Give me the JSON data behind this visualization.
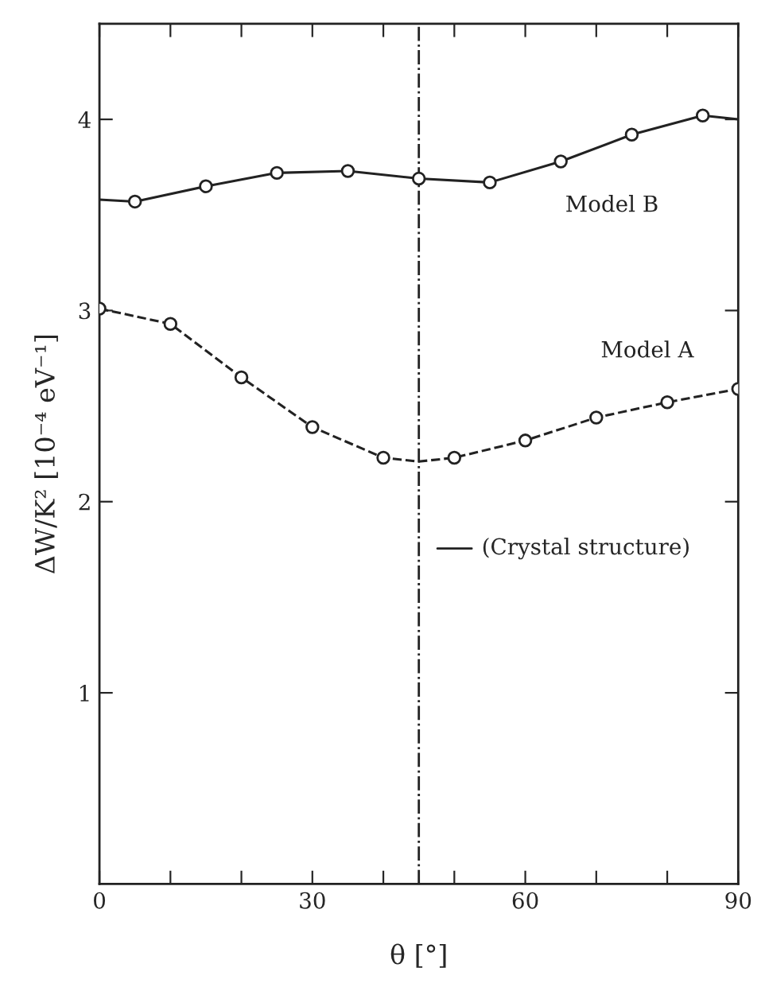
{
  "chart_data": {
    "type": "line",
    "xlabel": "θ [°]",
    "ylabel": "ΔW/K² [10⁻⁴ eV⁻¹]",
    "xlim": [
      0,
      90
    ],
    "ylim": [
      0,
      4.5
    ],
    "xticks": [
      0,
      {
        "value": 10,
        "label": null
      },
      {
        "value": 20,
        "label": null
      },
      30,
      {
        "value": 40,
        "label": null
      },
      {
        "value": 50,
        "label": null
      },
      60,
      {
        "value": 70,
        "label": null
      },
      {
        "value": 80,
        "label": null
      },
      90
    ],
    "yticks": [
      1,
      2,
      3,
      4
    ],
    "grid": false,
    "legend": false,
    "series": [
      {
        "color": "#222222",
        "line_style": "solid",
        "marker": "none",
        "x": [
          0,
          5,
          15,
          25,
          35,
          45,
          55,
          65,
          75,
          85,
          90
        ],
        "values": [
          3.58,
          3.57,
          3.65,
          3.72,
          3.73,
          3.69,
          3.67,
          3.78,
          3.92,
          4.02,
          4.0
        ]
      },
      {
        "type": "scatter",
        "name": "Model B",
        "color": "#222222",
        "marker": "circle",
        "x": [
          5,
          15,
          25,
          35,
          45,
          55,
          65,
          75,
          85
        ],
        "values": [
          3.57,
          3.65,
          3.72,
          3.73,
          3.69,
          3.67,
          3.78,
          3.92,
          4.02
        ]
      },
      {
        "color": "#222222",
        "line_style": "dashed",
        "marker": "none",
        "x": [
          0,
          10,
          20,
          30,
          40,
          45,
          50,
          60,
          70,
          80,
          90
        ],
        "values": [
          3.01,
          2.93,
          2.65,
          2.39,
          2.23,
          2.21,
          2.23,
          2.32,
          2.44,
          2.52,
          2.59
        ]
      },
      {
        "type": "scatter",
        "name": "Model A",
        "color": "#222222",
        "marker": "circle",
        "x": [
          0,
          10,
          20,
          30,
          40,
          50,
          60,
          70,
          80,
          90
        ],
        "values": [
          3.01,
          2.93,
          2.65,
          2.39,
          2.23,
          2.23,
          2.32,
          2.44,
          2.52,
          2.59
        ]
      }
    ],
    "ref_lines": [
      {
        "axis": "x",
        "value": 45,
        "label": "(Crystal structure)",
        "color": "#222222",
        "line_style": "dashdot"
      }
    ]
  }
}
